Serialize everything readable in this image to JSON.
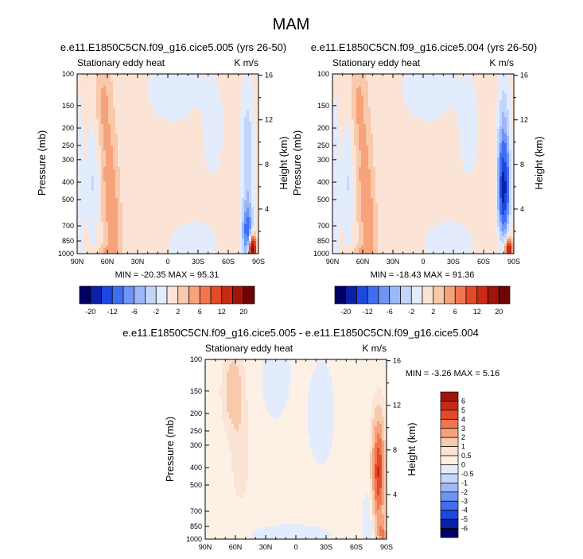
{
  "figure": {
    "title": "MAM",
    "colors": {
      "main": [
        "#000066",
        "#0b1fa8",
        "#1d48e0",
        "#3f6ef0",
        "#6f94f5",
        "#9db8f8",
        "#c3d6fa",
        "#e3ecfc",
        "#fbe4d6",
        "#f9c9ab",
        "#f6a27b",
        "#f1764f",
        "#e44a28",
        "#c82a14",
        "#9e150b",
        "#6d0505"
      ],
      "diff": [
        "#000066",
        "#0b1fa8",
        "#1d48e0",
        "#3f6ef0",
        "#6f94f5",
        "#9db8f8",
        "#c3d6fa",
        "#e3ecfc",
        "#fdf0e4",
        "#fbe4d6",
        "#f9c9ab",
        "#f6a27b",
        "#f1764f",
        "#e44a28",
        "#c82a14",
        "#9e150b"
      ]
    }
  },
  "chart_data": [
    {
      "type": "heatmap",
      "title": "e.e11.E1850C5CN.f09_g16.cice5.005 (yrs 26-50)",
      "subtitle_left": "Stationary eddy heat",
      "subtitle_right": "K m/s",
      "ylabel": "Pressure (mb)",
      "ylabel_right": "Height (km)",
      "xticks": [
        "90N",
        "60N",
        "30N",
        "0",
        "30S",
        "60S",
        "90S"
      ],
      "yticks": [
        "100",
        "150",
        "200",
        "250",
        "300",
        "400",
        "500",
        "700",
        "850",
        "1000"
      ],
      "yticks_right": [
        "16",
        "12",
        "8",
        "4"
      ],
      "min_max": "MIN = -20.35   MAX = 95.31",
      "colorbar_labels": [
        "-20",
        "-12",
        "-6",
        "-2",
        "2",
        "6",
        "12",
        "20"
      ],
      "features": [
        {
          "lat": 58,
          "p": 400,
          "value": 5
        },
        {
          "lat": 62,
          "p": 150,
          "value": 4
        },
        {
          "lat": 72,
          "p": 400,
          "value": -2
        },
        {
          "lat": -82,
          "p": 900,
          "value": 10
        },
        {
          "lat": -78,
          "p": 300,
          "value": -6
        }
      ]
    },
    {
      "type": "heatmap",
      "title": "e.e11.E1850C5CN.f09_g16.cice5.004 (yrs 26-50)",
      "subtitle_left": "Stationary eddy heat",
      "subtitle_right": "K m/s",
      "ylabel": "Pressure (mb)",
      "ylabel_right": "Height (km)",
      "xticks": [
        "90N",
        "60N",
        "30N",
        "0",
        "30S",
        "60S",
        "90S"
      ],
      "yticks": [
        "100",
        "150",
        "200",
        "250",
        "300",
        "400",
        "500",
        "700",
        "850",
        "1000"
      ],
      "yticks_right": [
        "16",
        "12",
        "8",
        "4"
      ],
      "min_max": "MIN = -18.43   MAX = 91.36",
      "colorbar_labels": [
        "-20",
        "-12",
        "-6",
        "-2",
        "2",
        "6",
        "12",
        "20"
      ],
      "features": [
        {
          "lat": 58,
          "p": 400,
          "value": 5
        },
        {
          "lat": 62,
          "p": 150,
          "value": 4
        },
        {
          "lat": 72,
          "p": 400,
          "value": -2
        },
        {
          "lat": -82,
          "p": 900,
          "value": 8
        },
        {
          "lat": -80,
          "p": 400,
          "value": -12
        }
      ]
    },
    {
      "type": "heatmap",
      "title": "e.e11.E1850C5CN.f09_g16.cice5.005 - e.e11.E1850C5CN.f09_g16.cice5.004",
      "subtitle_left": "Stationary eddy heat",
      "subtitle_right": "K m/s",
      "ylabel": "Pressure (mb)",
      "ylabel_right": "Height (km)",
      "xticks": [
        "90N",
        "60N",
        "30N",
        "0",
        "30S",
        "60S",
        "90S"
      ],
      "yticks": [
        "100",
        "150",
        "200",
        "250",
        "300",
        "400",
        "500",
        "700",
        "850",
        "1000"
      ],
      "yticks_right": [
        "16",
        "12",
        "8",
        "4"
      ],
      "min_max": "MIN =  -3.26  MAX =  5.16",
      "colorbar_labels": [
        "6",
        "5",
        "4",
        "3",
        "2",
        "1",
        "0.5",
        "0",
        "-0.5",
        "-1",
        "-2",
        "-3",
        "-4",
        "-5",
        "-6"
      ],
      "features": [
        {
          "lat": 62,
          "p": 150,
          "value": 1
        },
        {
          "lat": -82,
          "p": 400,
          "value": 4
        },
        {
          "lat": -85,
          "p": 950,
          "value": 2
        },
        {
          "lat": 25,
          "p": 900,
          "value": -0.5
        }
      ]
    }
  ]
}
